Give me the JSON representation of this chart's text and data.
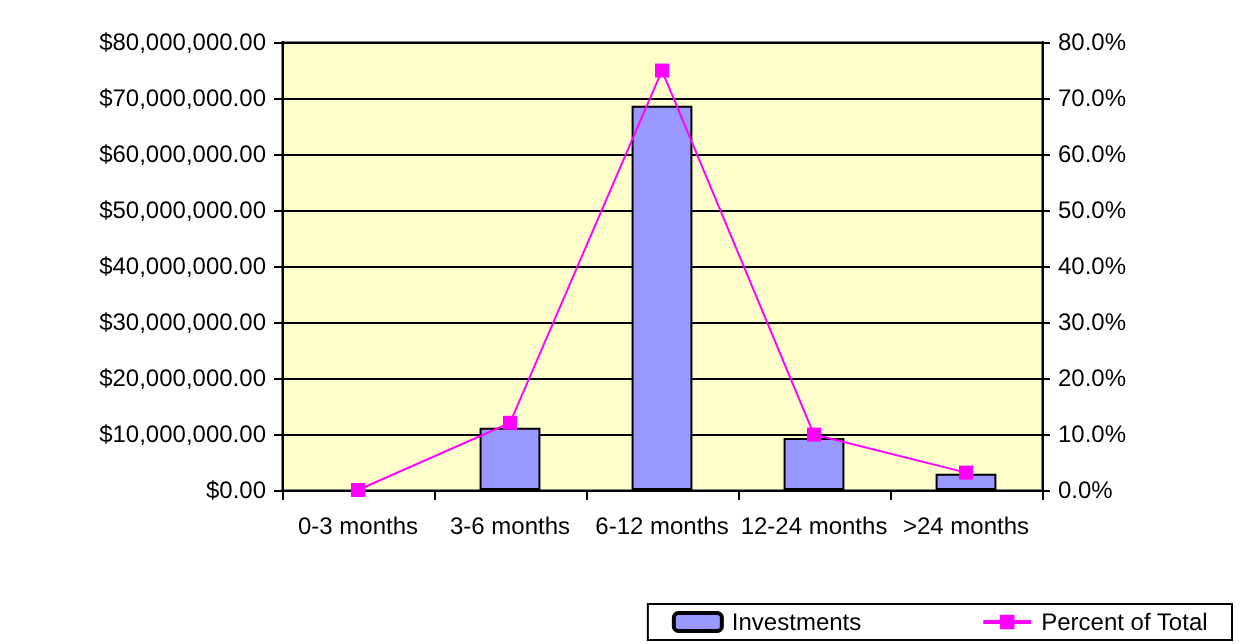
{
  "chart_data": {
    "type": "bar",
    "categories": [
      "0-3 months",
      "3-6 months",
      "6-12 months",
      "12-24 months",
      ">24 months"
    ],
    "series": [
      {
        "name": "Investments",
        "color": "#9999ff",
        "values": [
          0,
          11100000,
          68600000,
          9300000,
          2900000
        ]
      },
      {
        "name": "Percent of Total",
        "type": "line",
        "axis": "y2",
        "color": "#ff00ff",
        "marker": "square",
        "values": [
          0,
          12.0,
          74.9,
          9.9,
          3.1
        ]
      }
    ],
    "ylim": [
      0,
      80000000
    ],
    "yticks": [
      {
        "value": 0,
        "label": "$0.00"
      },
      {
        "value": 10000000,
        "label": "$10,000,000.00"
      },
      {
        "value": 20000000,
        "label": "$20,000,000.00"
      },
      {
        "value": 30000000,
        "label": "$30,000,000.00"
      },
      {
        "value": 40000000,
        "label": "$40,000,000.00"
      },
      {
        "value": 50000000,
        "label": "$50,000,000.00"
      },
      {
        "value": 60000000,
        "label": "$60,000,000.00"
      },
      {
        "value": 70000000,
        "label": "$70,000,000.00"
      },
      {
        "value": 80000000,
        "label": "$80,000,000.00"
      }
    ],
    "y2lim": [
      0,
      80
    ],
    "y2ticks": [
      {
        "value": 0,
        "label": "0.0%"
      },
      {
        "value": 10,
        "label": "10.0%"
      },
      {
        "value": 20,
        "label": "20.0%"
      },
      {
        "value": 30,
        "label": "30.0%"
      },
      {
        "value": 40,
        "label": "40.0%"
      },
      {
        "value": 50,
        "label": "50.0%"
      },
      {
        "value": 60,
        "label": "60.0%"
      },
      {
        "value": 70,
        "label": "70.0%"
      },
      {
        "value": 80,
        "label": "80.0%"
      }
    ],
    "grid": "y",
    "legend": "bottom right"
  }
}
